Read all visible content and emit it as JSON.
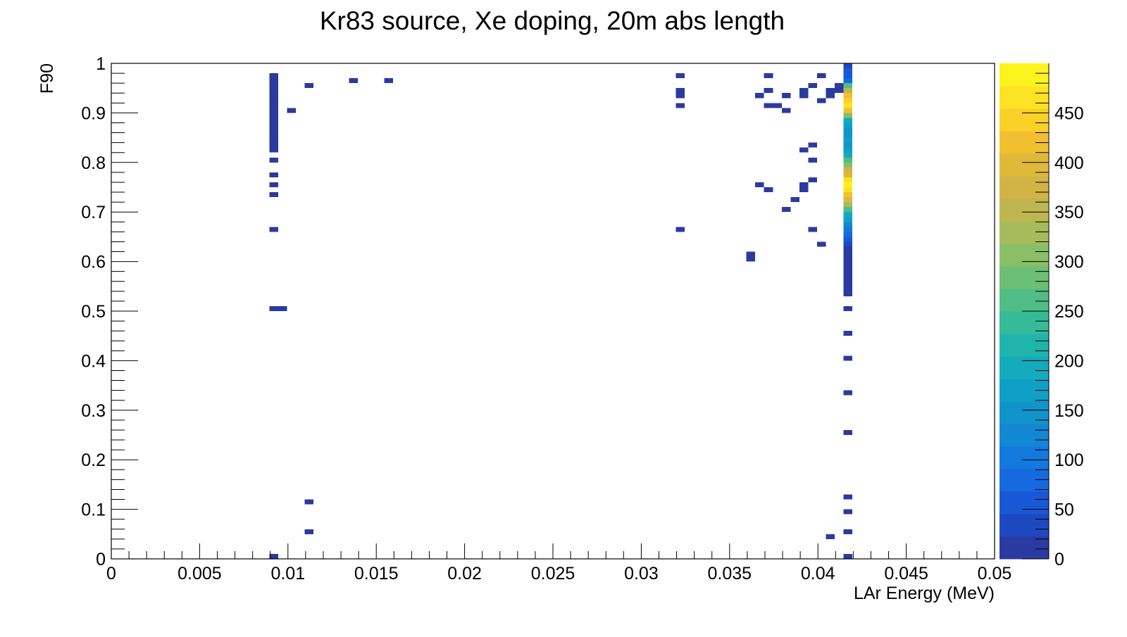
{
  "chart_data": {
    "type": "heatmap",
    "title": "Kr83 source, Xe doping, 20m abs length",
    "xlabel": "LAr Energy (MeV)",
    "ylabel": "F90",
    "xlim": [
      0,
      0.05
    ],
    "ylim": [
      0,
      1
    ],
    "zlim": [
      0,
      500
    ],
    "bin_width_x": 0.0005,
    "bin_width_y": 0.01,
    "x_ticks": [
      "0",
      "0.005",
      "0.01",
      "0.015",
      "0.02",
      "0.025",
      "0.03",
      "0.035",
      "0.04",
      "0.045",
      "0.05"
    ],
    "y_ticks": [
      "0",
      "0.1",
      "0.2",
      "0.3",
      "0.4",
      "0.5",
      "0.6",
      "0.7",
      "0.8",
      "0.9",
      "1"
    ],
    "z_ticks": [
      "0",
      "50",
      "100",
      "150",
      "200",
      "250",
      "300",
      "350",
      "400",
      "450"
    ],
    "palette": [
      "#2a3aa0",
      "#1d48c0",
      "#1858d6",
      "#166ae0",
      "#1478dc",
      "#1287d4",
      "#1194cc",
      "#10a0c6",
      "#14abbd",
      "#1fb4ac",
      "#35bb98",
      "#50be84",
      "#6cbf74",
      "#8abf67",
      "#a6bc5c",
      "#bfb651",
      "#d2b446",
      "#e0b83a",
      "#f0c030",
      "#f8d028",
      "#fce323",
      "#fdf41e"
    ],
    "cells": [
      [
        0.0092,
        0.975,
        1
      ],
      [
        0.0092,
        0.965,
        1
      ],
      [
        0.0092,
        0.955,
        1
      ],
      [
        0.0092,
        0.945,
        1
      ],
      [
        0.0092,
        0.935,
        1
      ],
      [
        0.0092,
        0.925,
        1
      ],
      [
        0.0092,
        0.915,
        1
      ],
      [
        0.0092,
        0.905,
        1
      ],
      [
        0.0092,
        0.895,
        1
      ],
      [
        0.0092,
        0.885,
        1
      ],
      [
        0.0092,
        0.875,
        1
      ],
      [
        0.0092,
        0.865,
        1
      ],
      [
        0.0092,
        0.855,
        1
      ],
      [
        0.0092,
        0.845,
        1
      ],
      [
        0.0092,
        0.835,
        1
      ],
      [
        0.0092,
        0.825,
        1
      ],
      [
        0.0092,
        0.805,
        1
      ],
      [
        0.0092,
        0.775,
        1
      ],
      [
        0.0092,
        0.755,
        1
      ],
      [
        0.0092,
        0.735,
        1
      ],
      [
        0.0092,
        0.665,
        1
      ],
      [
        0.0092,
        0.505,
        1
      ],
      [
        0.0097,
        0.505,
        1
      ],
      [
        0.0092,
        0.005,
        1
      ],
      [
        0.0102,
        0.905,
        1
      ],
      [
        0.0112,
        0.955,
        1
      ],
      [
        0.0137,
        0.965,
        1
      ],
      [
        0.0157,
        0.965,
        1
      ],
      [
        0.0112,
        0.115,
        1
      ],
      [
        0.0112,
        0.055,
        1
      ],
      [
        0.0322,
        0.975,
        1
      ],
      [
        0.0322,
        0.945,
        1
      ],
      [
        0.0322,
        0.935,
        1
      ],
      [
        0.0322,
        0.915,
        1
      ],
      [
        0.0322,
        0.665,
        1
      ],
      [
        0.0362,
        0.615,
        1
      ],
      [
        0.0362,
        0.605,
        1
      ],
      [
        0.0372,
        0.975,
        1
      ],
      [
        0.0372,
        0.945,
        1
      ],
      [
        0.0367,
        0.935,
        1
      ],
      [
        0.0372,
        0.915,
        1
      ],
      [
        0.0377,
        0.915,
        1
      ],
      [
        0.0382,
        0.905,
        1
      ],
      [
        0.0382,
        0.935,
        1
      ],
      [
        0.0392,
        0.945,
        1
      ],
      [
        0.0392,
        0.935,
        1
      ],
      [
        0.0397,
        0.955,
        1
      ],
      [
        0.0402,
        0.975,
        1
      ],
      [
        0.0402,
        0.925,
        1
      ],
      [
        0.0407,
        0.945,
        1
      ],
      [
        0.0407,
        0.935,
        1
      ],
      [
        0.0412,
        0.955,
        1
      ],
      [
        0.0412,
        0.945,
        1
      ],
      [
        0.0397,
        0.835,
        1
      ],
      [
        0.0392,
        0.825,
        1
      ],
      [
        0.0397,
        0.805,
        1
      ],
      [
        0.0367,
        0.755,
        1
      ],
      [
        0.0372,
        0.745,
        1
      ],
      [
        0.0392,
        0.755,
        1
      ],
      [
        0.0392,
        0.745,
        1
      ],
      [
        0.0397,
        0.765,
        1
      ],
      [
        0.0387,
        0.725,
        1
      ],
      [
        0.0382,
        0.705,
        1
      ],
      [
        0.0397,
        0.665,
        1
      ],
      [
        0.0402,
        0.635,
        1
      ],
      [
        0.0407,
        0.045,
        1
      ],
      [
        0.0417,
        0.995,
        30
      ],
      [
        0.0417,
        0.985,
        50
      ],
      [
        0.0417,
        0.975,
        60
      ],
      [
        0.0417,
        0.965,
        90
      ],
      [
        0.0417,
        0.955,
        250
      ],
      [
        0.0417,
        0.945,
        350
      ],
      [
        0.0417,
        0.935,
        420
      ],
      [
        0.0417,
        0.925,
        450
      ],
      [
        0.0417,
        0.915,
        470
      ],
      [
        0.0417,
        0.905,
        430
      ],
      [
        0.0417,
        0.895,
        300
      ],
      [
        0.0417,
        0.885,
        200
      ],
      [
        0.0417,
        0.875,
        170
      ],
      [
        0.0417,
        0.865,
        150
      ],
      [
        0.0417,
        0.855,
        150
      ],
      [
        0.0417,
        0.845,
        160
      ],
      [
        0.0417,
        0.835,
        150
      ],
      [
        0.0417,
        0.825,
        160
      ],
      [
        0.0417,
        0.815,
        200
      ],
      [
        0.0417,
        0.805,
        250
      ],
      [
        0.0417,
        0.795,
        300
      ],
      [
        0.0417,
        0.785,
        370
      ],
      [
        0.0417,
        0.775,
        400
      ],
      [
        0.0417,
        0.765,
        460
      ],
      [
        0.0417,
        0.755,
        495
      ],
      [
        0.0417,
        0.745,
        470
      ],
      [
        0.0417,
        0.735,
        430
      ],
      [
        0.0417,
        0.725,
        400
      ],
      [
        0.0417,
        0.715,
        340
      ],
      [
        0.0417,
        0.705,
        250
      ],
      [
        0.0417,
        0.695,
        200
      ],
      [
        0.0417,
        0.685,
        160
      ],
      [
        0.0417,
        0.675,
        130
      ],
      [
        0.0417,
        0.665,
        100
      ],
      [
        0.0417,
        0.655,
        80
      ],
      [
        0.0417,
        0.645,
        60
      ],
      [
        0.0417,
        0.635,
        40
      ],
      [
        0.0417,
        0.625,
        20
      ],
      [
        0.0417,
        0.615,
        20
      ],
      [
        0.0417,
        0.605,
        15
      ],
      [
        0.0417,
        0.595,
        15
      ],
      [
        0.0417,
        0.585,
        10
      ],
      [
        0.0417,
        0.575,
        10
      ],
      [
        0.0417,
        0.565,
        8
      ],
      [
        0.0417,
        0.555,
        5
      ],
      [
        0.0417,
        0.545,
        5
      ],
      [
        0.0417,
        0.535,
        3
      ],
      [
        0.0417,
        0.505,
        15
      ],
      [
        0.0417,
        0.455,
        1
      ],
      [
        0.0417,
        0.405,
        1
      ],
      [
        0.0417,
        0.335,
        1
      ],
      [
        0.0417,
        0.255,
        1
      ],
      [
        0.0417,
        0.125,
        1
      ],
      [
        0.0417,
        0.095,
        1
      ],
      [
        0.0417,
        0.055,
        1
      ],
      [
        0.0417,
        0.005,
        10
      ]
    ]
  }
}
